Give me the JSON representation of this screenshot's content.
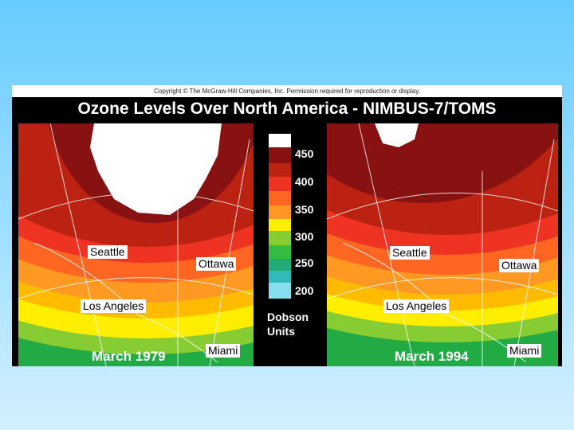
{
  "copyright": "Copyright © The McGraw-Hill Companies, Inc. Permission required for reproduction or display.",
  "title": "Ozone Levels Over North America - NIMBUS-7/TOMS",
  "legend": {
    "labels": [
      "450",
      "400",
      "350",
      "300",
      "250",
      "200"
    ],
    "units": [
      "Dobson",
      "Units"
    ]
  },
  "maps": [
    {
      "date": "March 1979",
      "labels": [
        "Seattle",
        "Ottawa",
        "Los Angeles",
        "Miami"
      ]
    },
    {
      "date": "March 1994",
      "labels": [
        "Seattle",
        "Ottawa",
        "Los Angeles",
        "Miami"
      ]
    }
  ]
}
